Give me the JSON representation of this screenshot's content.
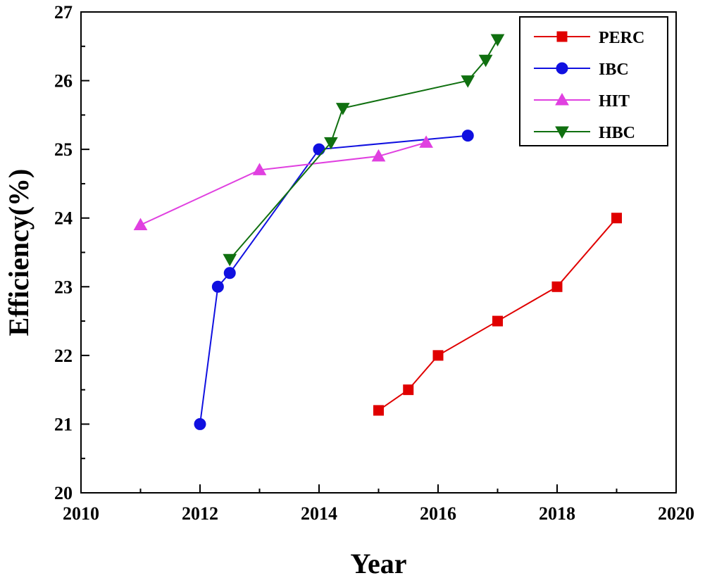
{
  "chart_data": {
    "type": "line",
    "title": "",
    "xlabel": "Year",
    "ylabel": "Efficiency(%)",
    "xlim": [
      2010,
      2020
    ],
    "ylim": [
      20,
      27
    ],
    "xticks": [
      2010,
      2012,
      2014,
      2016,
      2018,
      2020
    ],
    "yticks": [
      20,
      21,
      22,
      23,
      24,
      25,
      26,
      27
    ],
    "x_tick_labels": [
      "2010",
      "2012",
      "2014",
      "2016",
      "2018",
      "2020"
    ],
    "y_tick_labels": [
      "20",
      "21",
      "22",
      "23",
      "24",
      "25",
      "26",
      "27"
    ],
    "grid": false,
    "legend_position": "top-right",
    "series": [
      {
        "name": "PERC",
        "color": "#e00000",
        "marker": "square",
        "x": [
          2015,
          2015.5,
          2016,
          2017,
          2018,
          2019
        ],
        "y": [
          21.2,
          21.5,
          22.0,
          22.5,
          23.0,
          24.0
        ]
      },
      {
        "name": "IBC",
        "color": "#1010e0",
        "marker": "circle",
        "x": [
          2012,
          2012.3,
          2012.5,
          2014,
          2016.5
        ],
        "y": [
          21.0,
          23.0,
          23.2,
          25.0,
          25.2
        ]
      },
      {
        "name": "HIT",
        "color": "#e040e0",
        "marker": "triangle-up",
        "x": [
          2011,
          2013,
          2015,
          2015.8
        ],
        "y": [
          23.9,
          24.7,
          24.9,
          25.1
        ]
      },
      {
        "name": "HBC",
        "color": "#107010",
        "marker": "triangle-down",
        "x": [
          2012.5,
          2014.2,
          2014.4,
          2016.5,
          2016.8,
          2017
        ],
        "y": [
          23.4,
          25.1,
          25.6,
          26.0,
          26.3,
          26.6
        ]
      }
    ]
  }
}
